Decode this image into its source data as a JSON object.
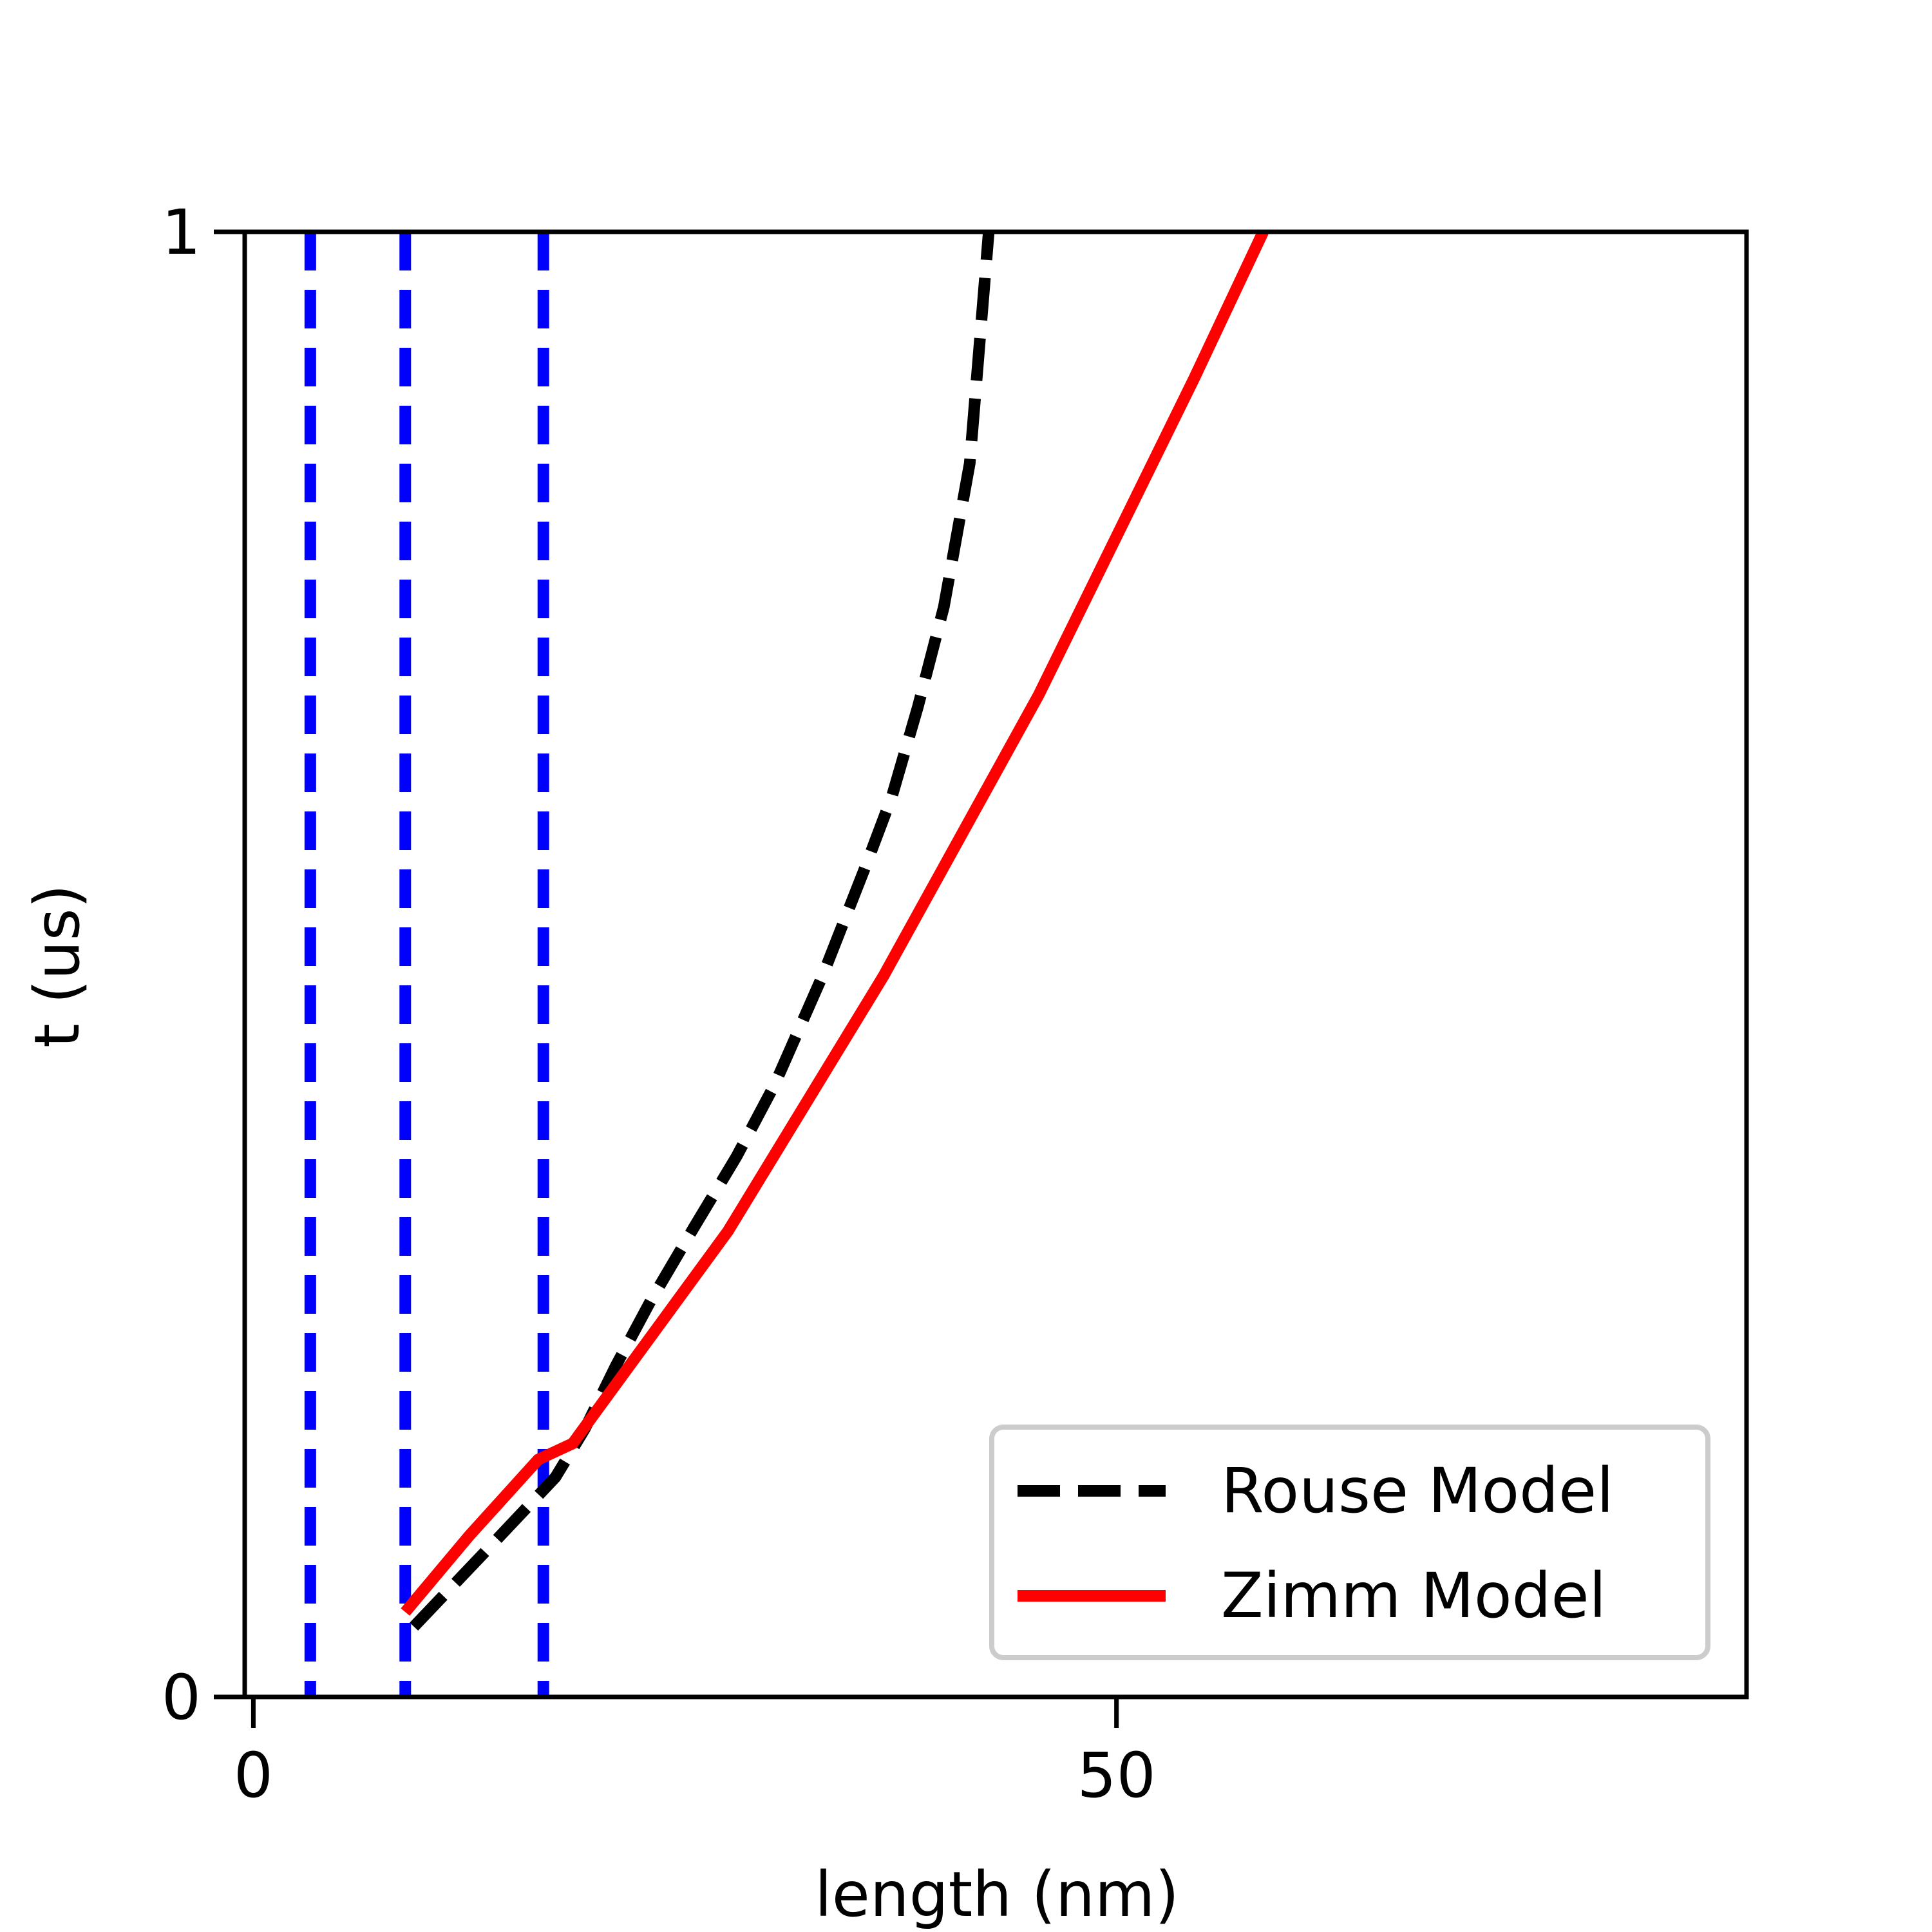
{
  "chart_data": {
    "type": "line",
    "title": "",
    "xlabel": "length (nm)",
    "ylabel": "t (us)",
    "xlim": [
      -0.5,
      86.5
    ],
    "ylim": [
      0,
      1
    ],
    "xticks": [
      0,
      50
    ],
    "yticks": [
      0,
      1
    ],
    "grid": false,
    "legend_position": "lower right",
    "series": [
      {
        "name": "Rouse Model",
        "color": "#000000",
        "style": "dashed",
        "x": [
          9.3,
          13.5,
          17.5,
          19.2,
          21.0,
          23.0,
          25.5,
          28.0,
          30.2,
          33.0,
          35.5,
          37.0,
          38.5,
          40.0,
          41.5,
          42.6
        ],
        "y": [
          0.048,
          0.1,
          0.15,
          0.183,
          0.226,
          0.27,
          0.32,
          0.369,
          0.418,
          0.493,
          0.568,
          0.615,
          0.676,
          0.744,
          0.842,
          1.0
        ]
      },
      {
        "name": "Zimm Model",
        "color": "#ff0000",
        "style": "solid",
        "x": [
          8.8,
          12.5,
          16.5,
          18.5,
          27.5,
          36.5,
          45.5,
          54.5,
          58.5
        ],
        "y": [
          0.058,
          0.11,
          0.162,
          0.173,
          0.318,
          0.492,
          0.684,
          0.9,
          1.0
        ]
      },
      {
        "name": "",
        "color": "#0000ff",
        "style": "dashed",
        "vlines": [
          3.3,
          8.8,
          16.8
        ]
      }
    ]
  }
}
